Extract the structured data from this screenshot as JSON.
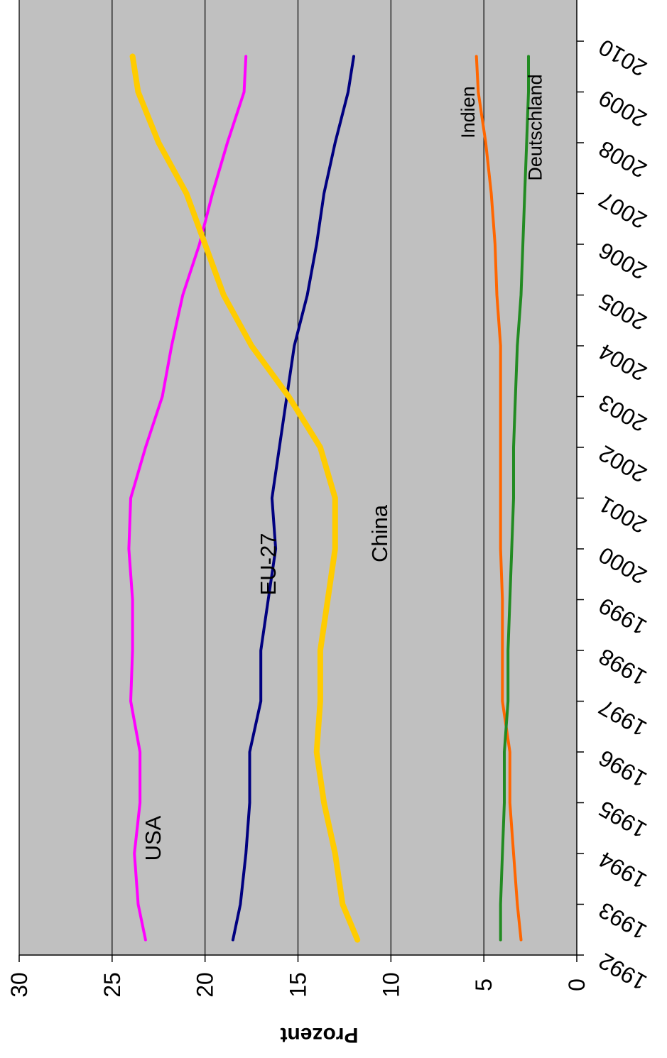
{
  "chart_data": {
    "type": "line",
    "title": "",
    "xlabel": "",
    "ylabel": "Prozent",
    "ylim": [
      0,
      30
    ],
    "xlim": [
      1992,
      2010
    ],
    "orientation": "rotated-90-clockwise",
    "grid": true,
    "background_color": "#c0c0c0",
    "x_ticks": [
      "1992",
      "1993",
      "1994",
      "1995",
      "1996",
      "1997",
      "1998",
      "1999",
      "2000",
      "2001",
      "2002",
      "2003",
      "2004",
      "2005",
      "2006",
      "2007",
      "2008",
      "2009",
      "2010"
    ],
    "y_ticks": [
      "0",
      "5",
      "10",
      "15",
      "20",
      "25",
      "30"
    ],
    "x": [
      1992.3,
      1993,
      1994,
      1995,
      1996,
      1997,
      1998,
      1999,
      2000,
      2001,
      2002,
      2003,
      2004,
      2005,
      2006,
      2007,
      2008,
      2009,
      2009.7
    ],
    "series": [
      {
        "name": "USA",
        "color": "#ff00ff",
        "stroke": 4,
        "values": [
          23.2,
          23.6,
          23.8,
          23.5,
          23.5,
          24.0,
          23.9,
          23.9,
          24.1,
          24.0,
          23.2,
          22.3,
          21.8,
          21.2,
          20.3,
          19.6,
          18.8,
          17.9,
          17.8
        ]
      },
      {
        "name": "EU-27",
        "color": "#000080",
        "stroke": 4,
        "values": [
          18.5,
          18.1,
          17.8,
          17.6,
          17.6,
          17.0,
          17.0,
          16.6,
          16.2,
          16.4,
          16.0,
          15.6,
          15.2,
          14.5,
          14.0,
          13.6,
          13.0,
          12.3,
          12.0
        ]
      },
      {
        "name": "China",
        "color": "#ffcc00",
        "stroke": 8,
        "values": [
          11.8,
          12.6,
          13.0,
          13.6,
          14.0,
          13.8,
          13.8,
          13.4,
          13.0,
          13.0,
          13.8,
          15.5,
          17.5,
          19.0,
          20.0,
          21.0,
          22.5,
          23.6,
          23.9
        ]
      },
      {
        "name": "Indien",
        "color": "#ff6600",
        "stroke": 4,
        "values": [
          3.0,
          3.2,
          3.4,
          3.6,
          3.6,
          4.0,
          4.0,
          4.0,
          4.1,
          4.1,
          4.1,
          4.1,
          4.1,
          4.3,
          4.4,
          4.6,
          4.9,
          5.3,
          5.4
        ]
      },
      {
        "name": "Deutschland",
        "color": "#228b22",
        "stroke": 4,
        "values": [
          4.1,
          4.1,
          4.0,
          3.9,
          3.9,
          3.7,
          3.7,
          3.6,
          3.5,
          3.4,
          3.4,
          3.3,
          3.2,
          3.0,
          2.9,
          2.8,
          2.7,
          2.6,
          2.6
        ]
      }
    ],
    "annotations": [
      {
        "text": "USA",
        "x": 1994.3,
        "y": 22.4
      },
      {
        "text": "EU-27",
        "x": 1999.7,
        "y": 16.2
      },
      {
        "text": "China",
        "x": 2000.3,
        "y": 10.2
      },
      {
        "text": "Indien",
        "x": 2008.6,
        "y": 5.5
      },
      {
        "text": "Deutschland",
        "x": 2008.3,
        "y": 1.9
      }
    ]
  }
}
